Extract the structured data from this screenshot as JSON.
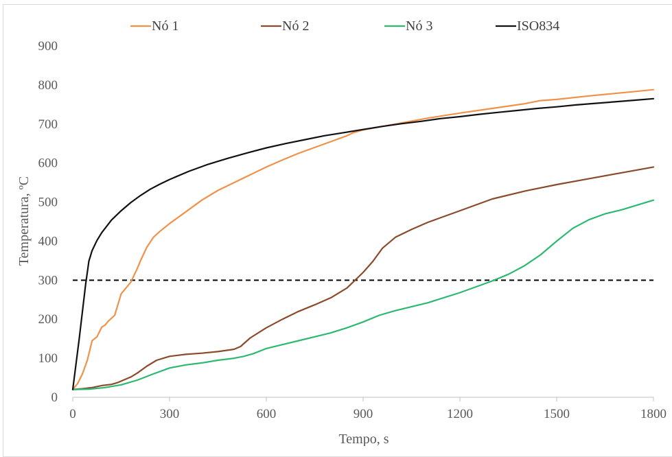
{
  "chart_data": {
    "type": "line",
    "title": "",
    "xlabel": "Tempo, s",
    "ylabel": "Temperatura, ºC",
    "xlim": [
      0,
      1800
    ],
    "ylim": [
      0,
      900
    ],
    "xticks": [
      0,
      300,
      600,
      900,
      1200,
      1500,
      1800
    ],
    "yticks": [
      0,
      100,
      200,
      300,
      400,
      500,
      600,
      700,
      800,
      900
    ],
    "legend_position": "top",
    "grid": false,
    "series": [
      {
        "name": "Nó 1",
        "color": "#f0914a",
        "x": [
          0,
          15,
          30,
          45,
          60,
          75,
          90,
          100,
          110,
          130,
          150,
          165,
          180,
          200,
          210,
          230,
          250,
          270,
          300,
          350,
          400,
          450,
          500,
          550,
          600,
          650,
          700,
          750,
          800,
          850,
          870,
          900,
          1000,
          1100,
          1200,
          1300,
          1400,
          1450,
          1500,
          1600,
          1700,
          1800
        ],
        "y": [
          20,
          35,
          60,
          95,
          145,
          155,
          180,
          185,
          195,
          210,
          265,
          280,
          295,
          330,
          350,
          385,
          410,
          425,
          445,
          475,
          505,
          530,
          550,
          570,
          590,
          608,
          625,
          640,
          655,
          670,
          678,
          685,
          700,
          715,
          728,
          740,
          752,
          760,
          763,
          772,
          780,
          788
        ]
      },
      {
        "name": "Nó 2",
        "color": "#8b4a2a",
        "x": [
          0,
          30,
          60,
          90,
          120,
          140,
          160,
          180,
          200,
          230,
          260,
          300,
          350,
          400,
          450,
          500,
          520,
          550,
          600,
          650,
          700,
          750,
          800,
          850,
          900,
          930,
          960,
          1000,
          1050,
          1100,
          1200,
          1300,
          1400,
          1500,
          1600,
          1700,
          1800
        ],
        "y": [
          20,
          22,
          25,
          30,
          33,
          38,
          45,
          52,
          62,
          80,
          95,
          105,
          110,
          113,
          117,
          123,
          130,
          152,
          178,
          200,
          220,
          237,
          255,
          280,
          320,
          348,
          382,
          410,
          430,
          448,
          478,
          508,
          528,
          545,
          560,
          575,
          590
        ]
      },
      {
        "name": "Nó 3",
        "color": "#2db870",
        "x": [
          0,
          50,
          100,
          150,
          200,
          250,
          300,
          350,
          400,
          450,
          500,
          530,
          560,
          600,
          650,
          700,
          750,
          800,
          850,
          900,
          950,
          1000,
          1100,
          1200,
          1300,
          1350,
          1400,
          1450,
          1500,
          1550,
          1600,
          1650,
          1700,
          1800
        ],
        "y": [
          20,
          21,
          25,
          32,
          44,
          60,
          75,
          83,
          88,
          95,
          100,
          105,
          112,
          125,
          135,
          145,
          155,
          165,
          178,
          193,
          210,
          222,
          242,
          268,
          298,
          315,
          337,
          365,
          400,
          433,
          455,
          470,
          480,
          505
        ]
      },
      {
        "name": "ISO834",
        "color": "#111111",
        "x": [
          0,
          20,
          40,
          50,
          60,
          75,
          90,
          120,
          150,
          180,
          210,
          240,
          270,
          300,
          360,
          420,
          480,
          540,
          600,
          660,
          720,
          780,
          840,
          900,
          960,
          1020,
          1080,
          1140,
          1200,
          1260,
          1320,
          1380,
          1440,
          1500,
          1560,
          1620,
          1680,
          1740,
          1800
        ],
        "y": [
          20,
          150,
          290,
          349,
          376,
          402,
          422,
          454,
          478,
          499,
          517,
          533,
          546,
          558,
          579,
          597,
          612,
          626,
          639,
          650,
          660,
          670,
          678,
          686,
          694,
          701,
          707,
          714,
          719,
          725,
          730,
          735,
          740,
          744,
          749,
          753,
          757,
          761,
          765
        ]
      }
    ],
    "reference_line": {
      "y": 300,
      "style": "dashed",
      "color": "#000000"
    }
  }
}
